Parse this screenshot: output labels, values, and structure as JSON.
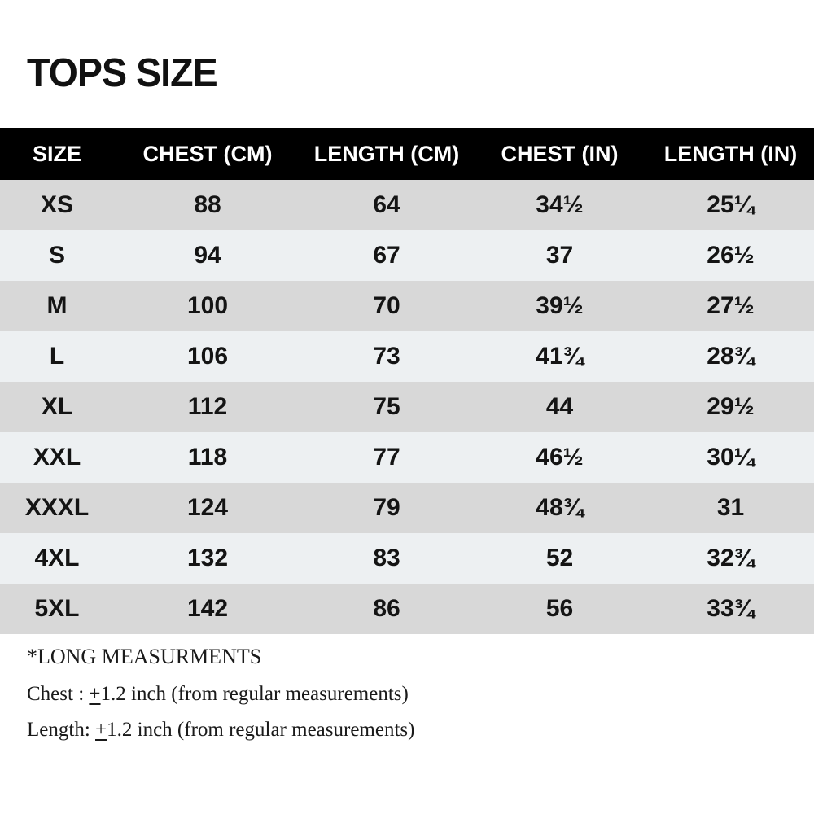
{
  "page": {
    "title": "TOPS SIZE"
  },
  "table": {
    "headers": [
      "SIZE",
      "CHEST (CM)",
      "LENGTH (CM)",
      "CHEST (IN)",
      "LENGTH (IN)"
    ],
    "rows": [
      {
        "size": "XS",
        "chest_cm": "88",
        "length_cm": "64",
        "chest_in": "34½",
        "length_in": "25¼"
      },
      {
        "size": "S",
        "chest_cm": "94",
        "length_cm": "67",
        "chest_in": "37",
        "length_in": "26½"
      },
      {
        "size": "M",
        "chest_cm": "100",
        "length_cm": "70",
        "chest_in": "39½",
        "length_in": "27½"
      },
      {
        "size": "L",
        "chest_cm": "106",
        "length_cm": "73",
        "chest_in": "41¾",
        "length_in": "28¾"
      },
      {
        "size": "XL",
        "chest_cm": "112",
        "length_cm": "75",
        "chest_in": "44",
        "length_in": "29½"
      },
      {
        "size": "XXL",
        "chest_cm": "118",
        "length_cm": "77",
        "chest_in": "46½",
        "length_in": "30¼"
      },
      {
        "size": "XXXL",
        "chest_cm": "124",
        "length_cm": "79",
        "chest_in": "48¾",
        "length_in": "31"
      },
      {
        "size": "4XL",
        "chest_cm": "132",
        "length_cm": "83",
        "chest_in": "52",
        "length_in": "32¾"
      },
      {
        "size": "5XL",
        "chest_cm": "142",
        "length_cm": "86",
        "chest_in": "56",
        "length_in": "33¾"
      }
    ]
  },
  "notes": {
    "heading": "*LONG MEASURMENTS",
    "chest": {
      "label": "Chest : ",
      "plus_sign": "+",
      "rest": "1.2 inch (from regular measurements)"
    },
    "length": {
      "label": "Length: ",
      "plus_sign": "+",
      "rest": "1.2 inch (from regular measurements)"
    }
  },
  "colors": {
    "header_bg": "#000000",
    "header_text": "#ffffff",
    "row_gray": "#d8d8d8",
    "row_light": "#edf0f2",
    "text": "#141414"
  }
}
